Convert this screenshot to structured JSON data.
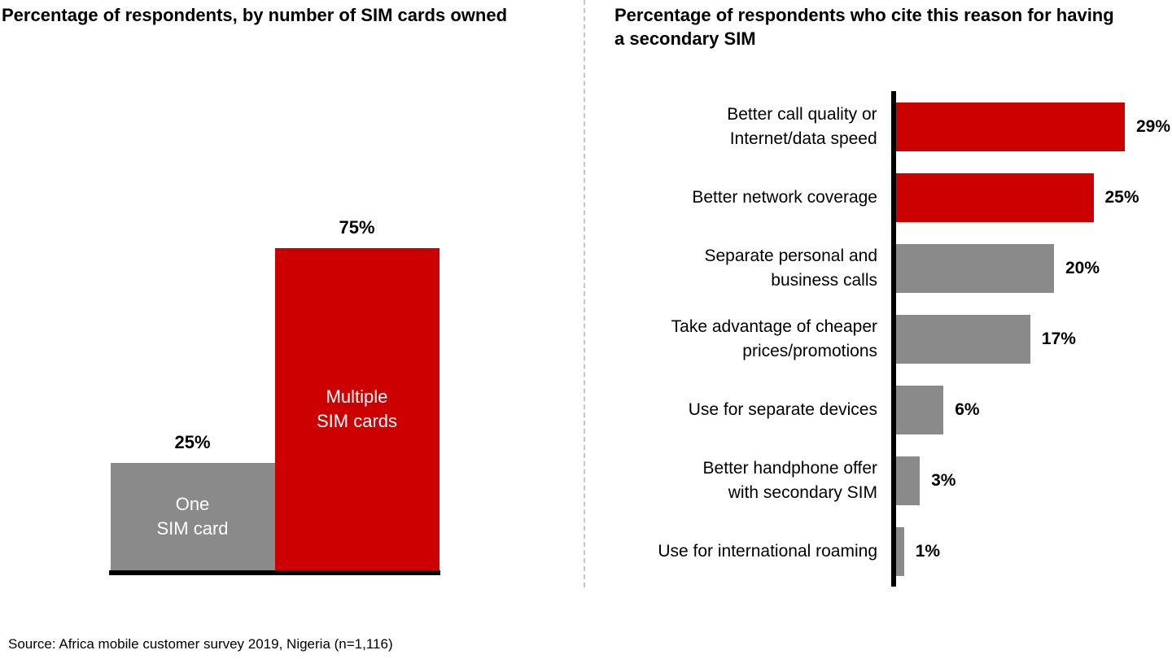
{
  "source_note": "Source: Africa mobile customer survey 2019, Nigeria  (n=1,116)",
  "colors": {
    "red": "#cc0000",
    "gray": "#8a8a8a",
    "axis": "#000000",
    "divider": "#c6c6c6"
  },
  "chart_data": [
    {
      "type": "bar",
      "orientation": "vertical",
      "title": "Percentage of respondents, by number of SIM cards owned",
      "categories": [
        "One SIM card",
        "Multiple SIM cards"
      ],
      "values": [
        25,
        75
      ],
      "value_labels": [
        "25%",
        "75%"
      ],
      "bar_labels": [
        "One\nSIM card",
        "Multiple\nSIM cards"
      ],
      "bar_colors": [
        "gray",
        "red"
      ],
      "ylim": [
        0,
        100
      ],
      "unit": "%"
    },
    {
      "type": "bar",
      "orientation": "horizontal",
      "title": "Percentage of respondents who cite this reason for having\na secondary SIM",
      "categories": [
        "Better call quality or\nInternet/data speed",
        "Better network coverage",
        "Separate personal and\nbusiness calls",
        "Take advantage of cheaper\nprices/promotions",
        "Use for separate devices",
        "Better handphone offer\nwith secondary SIM",
        "Use for international roaming"
      ],
      "values": [
        29,
        25,
        20,
        17,
        6,
        3,
        1
      ],
      "value_labels": [
        "29%",
        "25%",
        "20%",
        "17%",
        "6%",
        "3%",
        "1%"
      ],
      "bar_colors": [
        "red",
        "red",
        "gray",
        "gray",
        "gray",
        "gray",
        "gray"
      ],
      "xlim": [
        0,
        30
      ],
      "unit": "%"
    }
  ]
}
